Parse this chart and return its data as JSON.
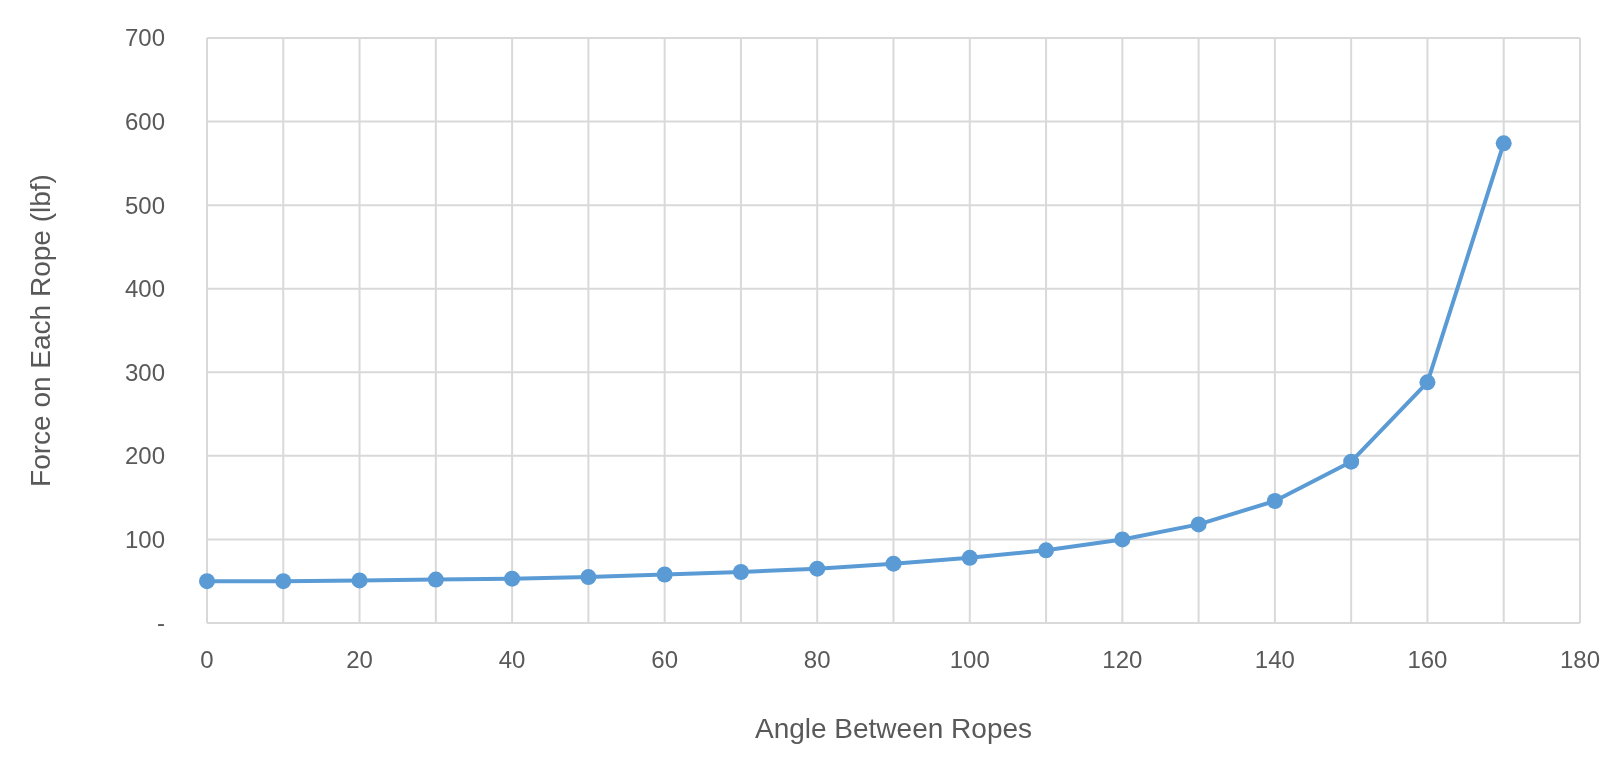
{
  "chart_data": {
    "type": "line",
    "xlabel": "Angle Between  Ropes",
    "ylabel": "Force on Each Rope (lbf)",
    "x": [
      0,
      10,
      20,
      30,
      40,
      50,
      60,
      70,
      80,
      90,
      100,
      110,
      120,
      130,
      140,
      150,
      160,
      170
    ],
    "series": [
      {
        "color": "#5b9bd5",
        "values": [
          50,
          50,
          51,
          52,
          53,
          55,
          58,
          61,
          65,
          71,
          78,
          87,
          100,
          118,
          146,
          193,
          288,
          574
        ]
      }
    ],
    "xlim": [
      0,
      180
    ],
    "xticks": [
      0,
      {
        "value": 10,
        "label": null
      },
      20,
      {
        "value": 30,
        "label": null
      },
      40,
      {
        "value": 50,
        "label": null
      },
      60,
      {
        "value": 70,
        "label": null
      },
      80,
      {
        "value": 90,
        "label": null
      },
      100,
      {
        "value": 110,
        "label": null
      },
      120,
      {
        "value": 130,
        "label": null
      },
      140,
      {
        "value": 150,
        "label": null
      },
      160,
      {
        "value": 170,
        "label": null
      },
      180
    ],
    "ylim": [
      0,
      700
    ],
    "yticks": [
      {
        "value": 0,
        "label": "-"
      },
      100,
      200,
      300,
      400,
      500,
      600,
      700
    ],
    "grid": true,
    "marker": "circle",
    "line_style": "solid"
  }
}
